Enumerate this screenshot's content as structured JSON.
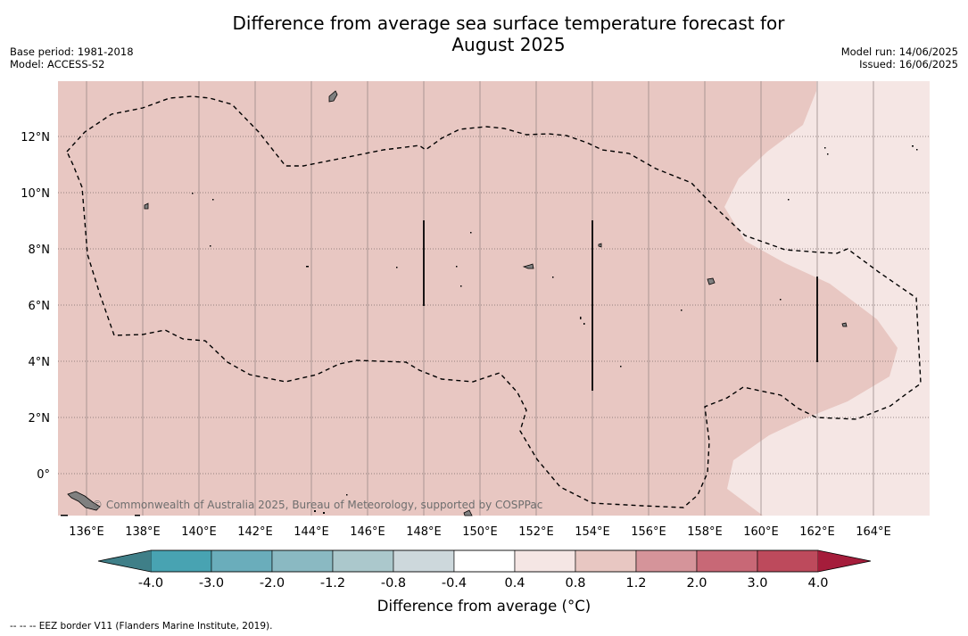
{
  "title_line1": "Difference from average sea surface temperature forecast for",
  "title_line2": "August 2025",
  "meta_left": [
    "Base period: 1981-2018",
    "Model: ACCESS-S2"
  ],
  "meta_right": [
    "Model run: 14/06/2025",
    "Issued: 16/06/2025"
  ],
  "map": {
    "lon_labels": [
      "136°E",
      "138°E",
      "140°E",
      "142°E",
      "144°E",
      "146°E",
      "148°E",
      "150°E",
      "152°E",
      "154°E",
      "156°E",
      "158°E",
      "160°E",
      "162°E",
      "164°E"
    ],
    "lat_labels": [
      "12°N",
      "10°N",
      "8°N",
      "6°N",
      "4°N",
      "2°N",
      "0°"
    ],
    "lon_values": [
      136,
      138,
      140,
      142,
      144,
      146,
      148,
      150,
      152,
      154,
      156,
      158,
      160,
      162,
      164
    ],
    "lat_values": [
      12,
      10,
      8,
      6,
      4,
      2,
      0
    ],
    "extent": {
      "lon_min": 135.0,
      "lon_max": 166.0,
      "lat_min": -1.5,
      "lat_max": 14.0
    },
    "watermark": "© Commonwealth of Australia 2025, Bureau of Meteorology, supported by COSPPac",
    "fill_colors": {
      "anomaly_0_8_to_1_2": "#e8c7c2",
      "anomaly_0_4_to_0_8": "#f5e6e4"
    }
  },
  "colorbar": {
    "tick_labels": [
      "-4.0",
      "-3.0",
      "-2.0",
      "-1.2",
      "-0.8",
      "-0.4",
      "0.4",
      "0.8",
      "1.2",
      "2.0",
      "3.0",
      "4.0"
    ],
    "colors": [
      "#48a3b2",
      "#6aadbb",
      "#8ab9c2",
      "#abc8cc",
      "#cdd8dc",
      "#ffffff",
      "#f5e6e4",
      "#e8c7c2",
      "#d5949a",
      "#c86876",
      "#bd4a5c"
    ],
    "under_color": "#3f7f88",
    "over_color": "#a51d3b",
    "label": "Difference from average (°C)"
  },
  "footnote": "-- -- -- EEZ border V11 (Flanders Marine Institute, 2019)."
}
